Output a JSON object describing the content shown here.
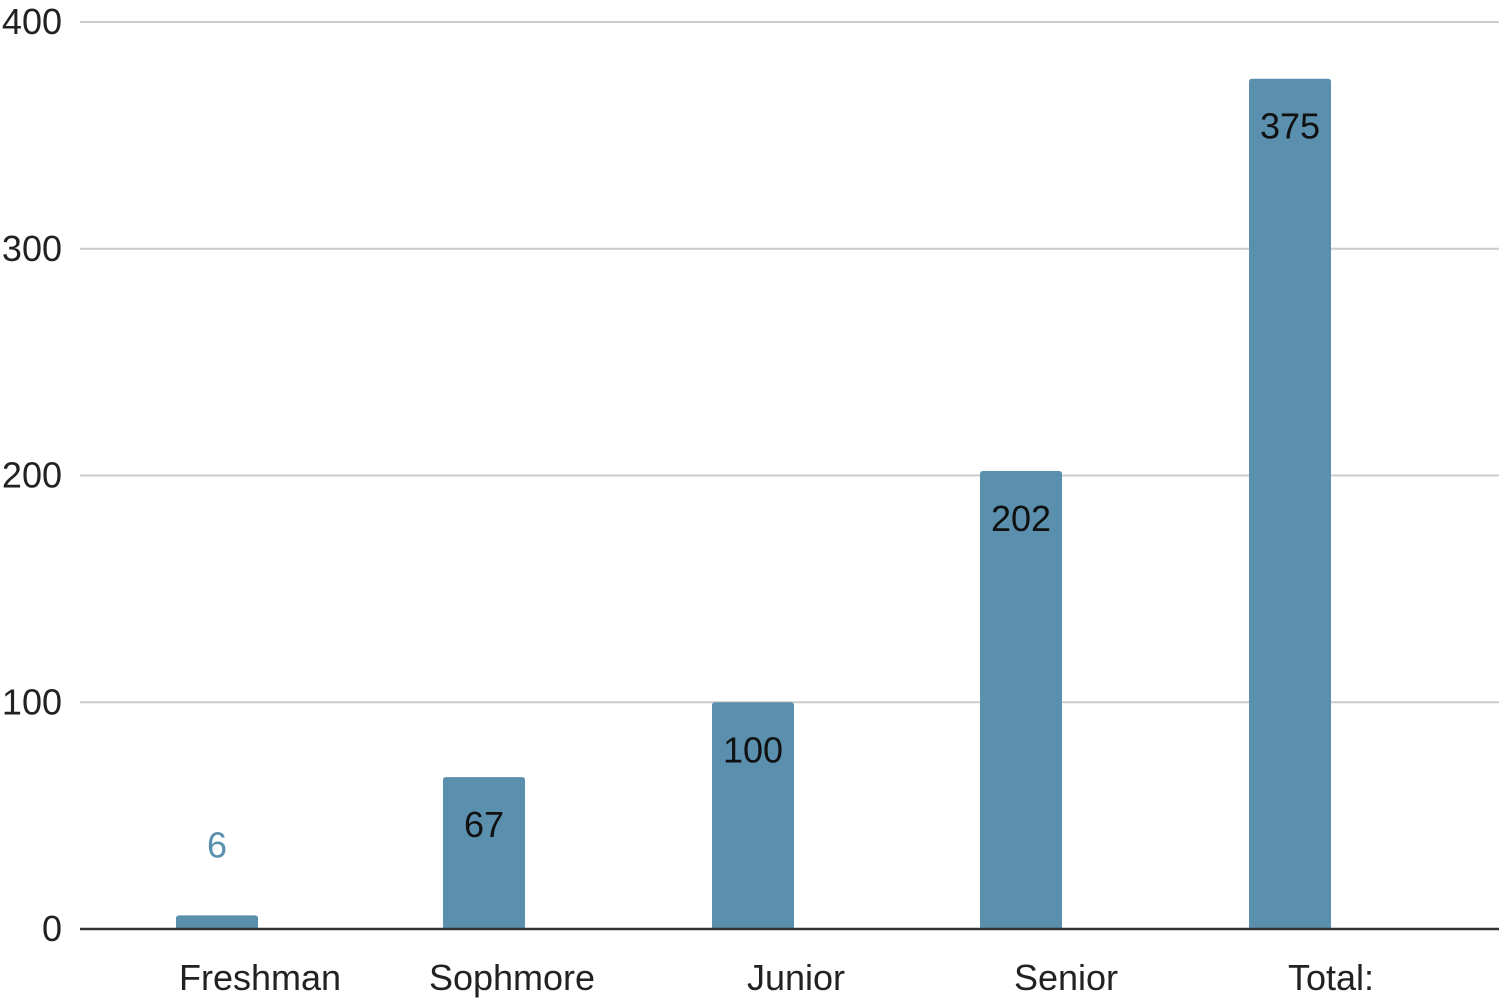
{
  "chart_data": {
    "type": "bar",
    "title": "",
    "xlabel": "",
    "ylabel": "",
    "categories": [
      "Freshman",
      "Sophmore",
      "Junior",
      "Senior",
      "Total:"
    ],
    "values": [
      6,
      67,
      100,
      202,
      375
    ],
    "data_labels": [
      "6",
      "67",
      "100",
      "202",
      "375"
    ],
    "ylim": [
      0,
      400
    ],
    "yticks": [
      0,
      100,
      200,
      300,
      400
    ],
    "ytick_labels": [
      "0",
      "100",
      "200",
      "300",
      "400"
    ],
    "grid": true,
    "legend": "none",
    "colors": {
      "bar": "#5a8fae",
      "label_inside": "#111111",
      "label_outside": "#5a8fae",
      "grid": "#cccccc",
      "axis": "#333333"
    }
  }
}
